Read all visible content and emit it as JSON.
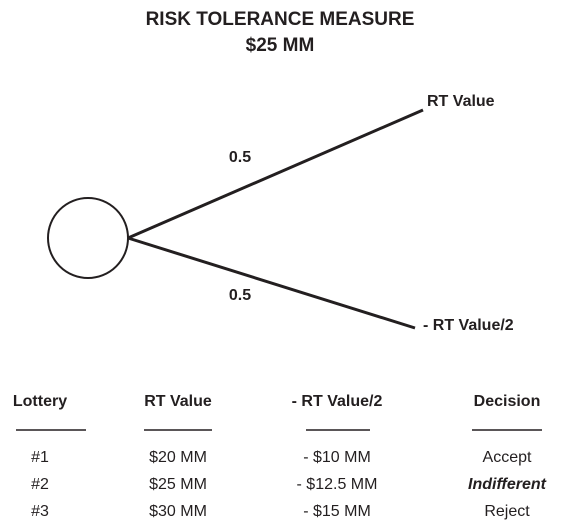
{
  "title": [
    "RISK TOLERANCE MEASURE",
    "$25 MM"
  ],
  "tree": {
    "branches": [
      {
        "probability": 0.5,
        "outcome": "RT Value"
      },
      {
        "probability": 0.5,
        "outcome": "- RT Value/2"
      }
    ]
  },
  "table": {
    "headers": [
      "Lottery",
      "RT Value",
      "- RT Value/2",
      "Decision"
    ],
    "rows": [
      [
        "#1",
        "$20 MM",
        "- $10 MM",
        "Accept"
      ],
      [
        "#2",
        "$25 MM",
        "- $12.5 MM",
        "Indifferent"
      ],
      [
        "#3",
        "$30 MM",
        "- $15 MM",
        "Reject"
      ]
    ]
  }
}
